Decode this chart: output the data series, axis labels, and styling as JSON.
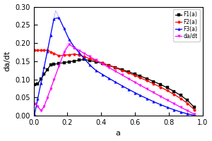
{
  "title": "",
  "xlabel": "a",
  "ylabel": "da/dt",
  "xlim": [
    0,
    1.0
  ],
  "ylim": [
    0,
    0.3
  ],
  "yticks": [
    0.0,
    0.05,
    0.1,
    0.15,
    0.2,
    0.25,
    0.3
  ],
  "xticks": [
    0.0,
    0.2,
    0.4,
    0.6,
    0.8,
    1.0
  ],
  "legend": [
    "F1(a)",
    "F2(a)",
    "F3(a)",
    "da/dt"
  ],
  "colors": [
    "black",
    "red",
    "blue",
    "magenta"
  ],
  "markers": [
    "s",
    "o",
    "^",
    "v"
  ],
  "background": "#ffffff",
  "line_color": "#cccccc"
}
